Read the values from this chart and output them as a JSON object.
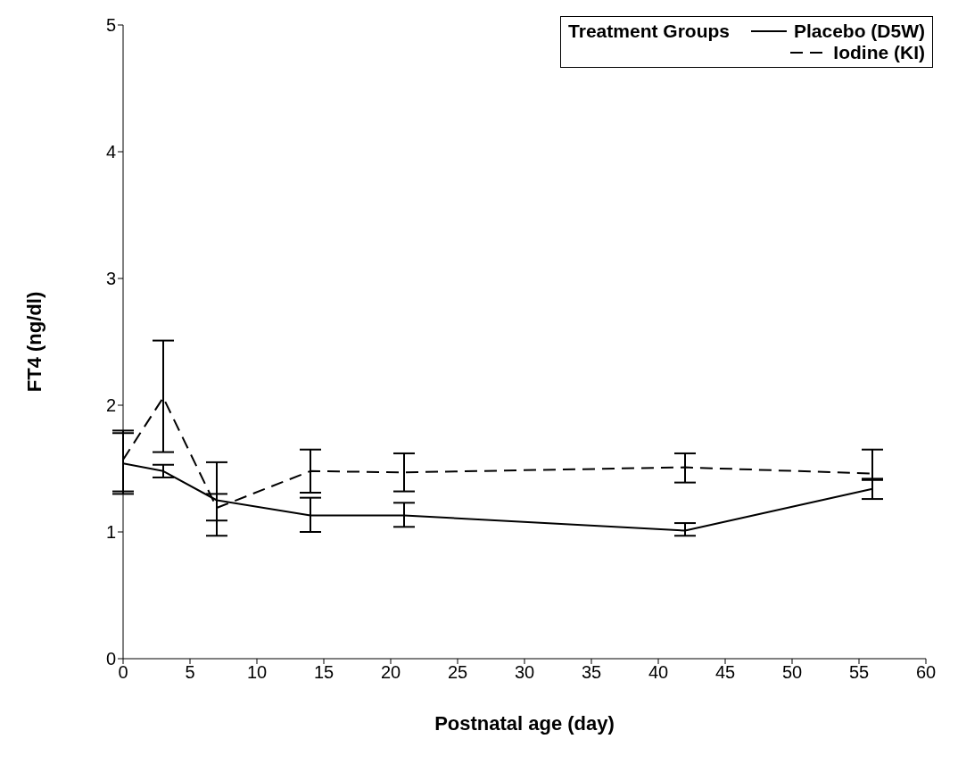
{
  "chart_data": {
    "type": "line",
    "xlabel": "Postnatal age (day)",
    "ylabel": "FT4 (ng/dl)",
    "legend_title": "Treatment Groups",
    "x": [
      0,
      3,
      7,
      14,
      21,
      42,
      56
    ],
    "series": [
      {
        "name": "Placebo (D5W)",
        "color": "#000000",
        "line_style": "solid",
        "values": [
          1.54,
          1.48,
          1.25,
          1.13,
          1.13,
          1.01,
          1.34
        ],
        "errors": [
          [
            1.32,
            1.78
          ],
          [
            1.43,
            1.53
          ],
          [
            1.09,
            1.3
          ],
          [
            1.0,
            1.27
          ],
          [
            1.04,
            1.23
          ],
          [
            0.97,
            1.07
          ],
          [
            1.26,
            1.42
          ]
        ]
      },
      {
        "name": "Iodine (KI)",
        "color": "#000000",
        "line_style": "dashed",
        "values": [
          1.57,
          2.06,
          1.19,
          1.48,
          1.47,
          1.51,
          1.46
        ],
        "errors": [
          [
            1.3,
            1.8
          ],
          [
            1.63,
            2.51
          ],
          [
            0.97,
            1.55
          ],
          [
            1.31,
            1.65
          ],
          [
            1.32,
            1.62
          ],
          [
            1.39,
            1.62
          ],
          [
            1.41,
            1.65
          ]
        ]
      }
    ],
    "xlim": [
      0,
      60
    ],
    "xticks": [
      0,
      5,
      10,
      15,
      20,
      25,
      30,
      35,
      40,
      45,
      50,
      55,
      60
    ],
    "ylim": [
      0,
      5
    ],
    "yticks": [
      0,
      1,
      2,
      3,
      4,
      5
    ],
    "grid": false,
    "legend": "top right",
    "marker": "none"
  }
}
